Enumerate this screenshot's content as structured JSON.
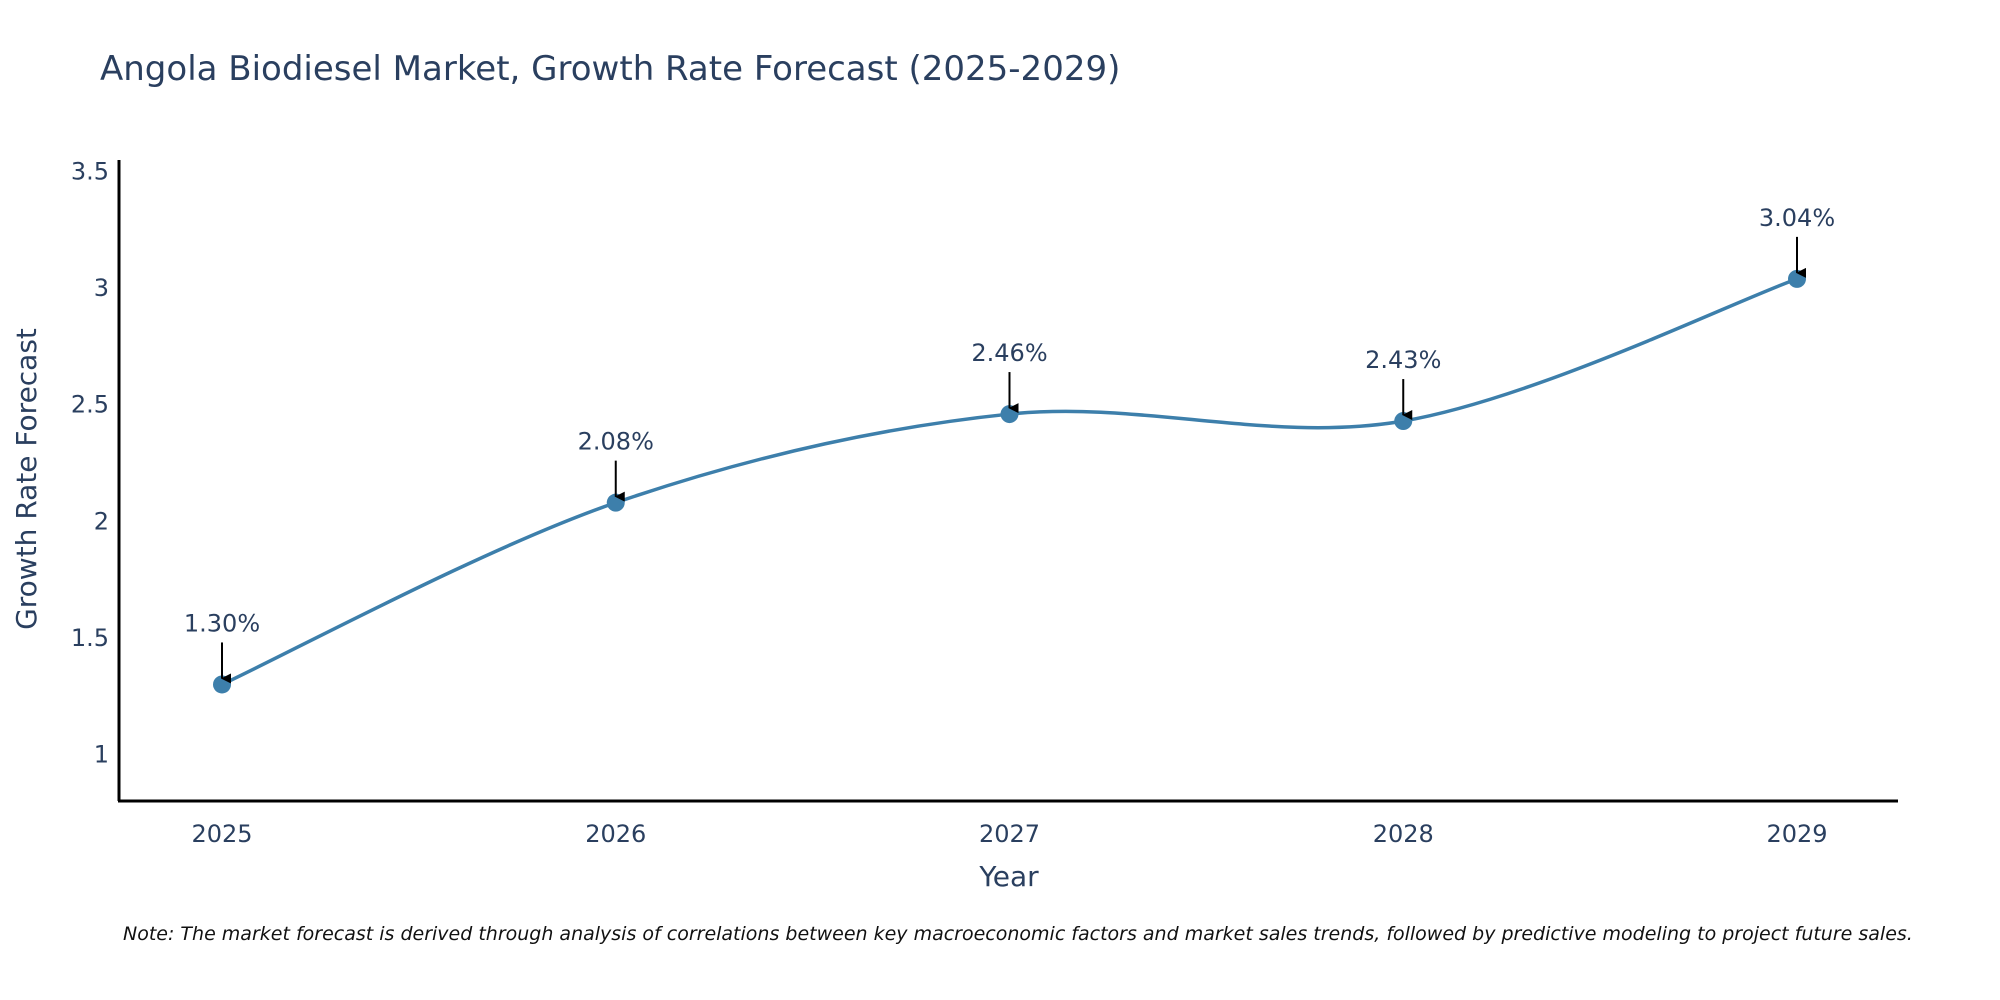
{
  "colors": {
    "line": "#3d7fab",
    "marker": "#3d7fab",
    "axis": "#000000",
    "text": "#2a3f5f",
    "arrow": "#000000"
  },
  "chart_data": {
    "type": "line",
    "title": "Angola Biodiesel Market, Growth Rate Forecast (2025-2029)",
    "xlabel": "Year",
    "ylabel": "Growth Rate Forecast",
    "categories": [
      "2025",
      "2026",
      "2027",
      "2028",
      "2029"
    ],
    "series": [
      {
        "name": "Growth Rate Forecast",
        "values": [
          1.3,
          2.08,
          2.46,
          2.43,
          3.04
        ],
        "labels": [
          "1.30%",
          "2.08%",
          "2.46%",
          "2.43%",
          "3.04%"
        ]
      }
    ],
    "ylim": [
      0.8,
      3.55
    ],
    "yticks": [
      1,
      1.5,
      2,
      2.5,
      3,
      3.5
    ],
    "ytick_labels": [
      "1",
      "1.5",
      "2",
      "2.5",
      "3",
      "3.5"
    ],
    "grid": false,
    "line_shape": "spline",
    "note": "Note: The market forecast is derived through analysis of correlations between key macroeconomic factors and market sales trends, followed by predictive modeling to project future sales."
  }
}
